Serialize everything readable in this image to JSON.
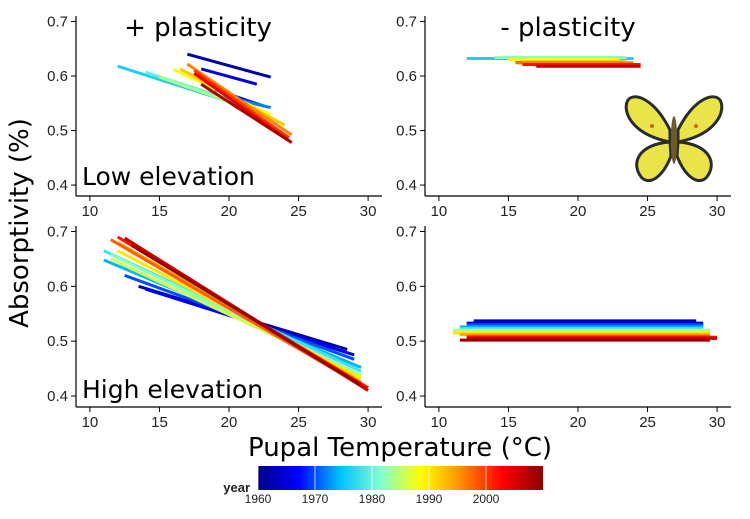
{
  "figure": {
    "col_titles": [
      "+ plasticity",
      "- plasticity"
    ],
    "row_labels": [
      "Low elevation",
      "High elevation"
    ],
    "xlabel": "Pupal Temperature (°C)",
    "ylabel": "Absorptivity (%)",
    "colorbar": {
      "title": "year",
      "ticks": [
        "1960",
        "1970",
        "1980",
        "1990",
        "2000"
      ],
      "range": [
        1960,
        2010
      ],
      "colors": [
        "#00008b",
        "#0000ff",
        "#00bfff",
        "#7fffd4",
        "#ffff00",
        "#ff8c00",
        "#ff0000",
        "#8b0000"
      ]
    },
    "butterfly": {
      "body": "#6b5a2e",
      "wing": "#e8e44a",
      "edge": "#2b2b2b"
    }
  },
  "chart_data": [
    {
      "type": "line",
      "panel": "+ plasticity / Low elevation",
      "xlim": [
        9,
        31
      ],
      "ylim": [
        0.38,
        0.71
      ],
      "xticks": [
        "10",
        "15",
        "20",
        "25",
        "30"
      ],
      "yticks": [
        "0.4",
        "0.5",
        "0.6",
        "0.7"
      ],
      "grid": false,
      "lines": [
        {
          "year": 1962,
          "x": [
            17,
            23
          ],
          "y": [
            0.64,
            0.598
          ]
        },
        {
          "year": 1965,
          "x": [
            18,
            22
          ],
          "y": [
            0.613,
            0.585
          ]
        },
        {
          "year": 1968,
          "x": [
            19,
            22.5
          ],
          "y": [
            0.575,
            0.545
          ]
        },
        {
          "year": 1972,
          "x": [
            20,
            23
          ],
          "y": [
            0.56,
            0.542
          ]
        },
        {
          "year": 1976,
          "x": [
            12,
            20
          ],
          "y": [
            0.618,
            0.553
          ]
        },
        {
          "year": 1980,
          "x": [
            14,
            21
          ],
          "y": [
            0.607,
            0.549
          ]
        },
        {
          "year": 1984,
          "x": [
            15,
            22
          ],
          "y": [
            0.598,
            0.535
          ]
        },
        {
          "year": 1988,
          "x": [
            16,
            23
          ],
          "y": [
            0.612,
            0.529
          ]
        },
        {
          "year": 1992,
          "x": [
            16.5,
            24
          ],
          "y": [
            0.613,
            0.51
          ]
        },
        {
          "year": 1996,
          "x": [
            17,
            24.5
          ],
          "y": [
            0.622,
            0.492
          ]
        },
        {
          "year": 2000,
          "x": [
            17.5,
            24.3
          ],
          "y": [
            0.61,
            0.487
          ]
        },
        {
          "year": 2004,
          "x": [
            17.5,
            24.5
          ],
          "y": [
            0.605,
            0.478
          ]
        },
        {
          "year": 2008,
          "x": [
            18,
            24.5
          ],
          "y": [
            0.585,
            0.478
          ]
        }
      ]
    },
    {
      "type": "line",
      "panel": "- plasticity / Low elevation",
      "xlim": [
        9,
        31
      ],
      "ylim": [
        0.38,
        0.71
      ],
      "xticks": [
        "10",
        "15",
        "20",
        "25",
        "30"
      ],
      "yticks": [
        "0.4",
        "0.5",
        "0.6",
        "0.7"
      ],
      "grid": false,
      "lines": [
        {
          "year": 1962,
          "x": [
            16,
            22
          ],
          "y": [
            0.63,
            0.63
          ]
        },
        {
          "year": 1968,
          "x": [
            15.5,
            23
          ],
          "y": [
            0.628,
            0.628
          ]
        },
        {
          "year": 1976,
          "x": [
            12,
            24
          ],
          "y": [
            0.632,
            0.632
          ]
        },
        {
          "year": 1982,
          "x": [
            14,
            23.5
          ],
          "y": [
            0.634,
            0.634
          ]
        },
        {
          "year": 1988,
          "x": [
            15,
            23
          ],
          "y": [
            0.63,
            0.63
          ]
        },
        {
          "year": 1993,
          "x": [
            16,
            23.5
          ],
          "y": [
            0.626,
            0.626
          ]
        },
        {
          "year": 1997,
          "x": [
            15.5,
            24
          ],
          "y": [
            0.624,
            0.624
          ]
        },
        {
          "year": 2002,
          "x": [
            16,
            24.5
          ],
          "y": [
            0.621,
            0.621
          ]
        },
        {
          "year": 2007,
          "x": [
            17,
            24.5
          ],
          "y": [
            0.618,
            0.618
          ]
        }
      ]
    },
    {
      "type": "line",
      "panel": "+ plasticity / High elevation",
      "xlim": [
        9,
        31
      ],
      "ylim": [
        0.38,
        0.71
      ],
      "xticks": [
        "10",
        "15",
        "20",
        "25",
        "30"
      ],
      "yticks": [
        "0.4",
        "0.5",
        "0.6",
        "0.7"
      ],
      "grid": false,
      "lines": [
        {
          "year": 1962,
          "x": [
            13.5,
            28.5
          ],
          "y": [
            0.6,
            0.485
          ]
        },
        {
          "year": 1966,
          "x": [
            14,
            29
          ],
          "y": [
            0.595,
            0.475
          ]
        },
        {
          "year": 1970,
          "x": [
            12.5,
            29
          ],
          "y": [
            0.62,
            0.467
          ]
        },
        {
          "year": 1974,
          "x": [
            11,
            29.5
          ],
          "y": [
            0.648,
            0.452
          ]
        },
        {
          "year": 1978,
          "x": [
            11,
            29.5
          ],
          "y": [
            0.665,
            0.445
          ]
        },
        {
          "year": 1982,
          "x": [
            11.5,
            29.5
          ],
          "y": [
            0.658,
            0.438
          ]
        },
        {
          "year": 1986,
          "x": [
            11.5,
            29.5
          ],
          "y": [
            0.65,
            0.435
          ]
        },
        {
          "year": 1990,
          "x": [
            12,
            29.5
          ],
          "y": [
            0.665,
            0.432
          ]
        },
        {
          "year": 1994,
          "x": [
            12,
            29.5
          ],
          "y": [
            0.68,
            0.425
          ]
        },
        {
          "year": 1998,
          "x": [
            11.5,
            29.5
          ],
          "y": [
            0.685,
            0.42
          ]
        },
        {
          "year": 2002,
          "x": [
            12,
            30
          ],
          "y": [
            0.69,
            0.415
          ]
        },
        {
          "year": 2006,
          "x": [
            12.5,
            30
          ],
          "y": [
            0.688,
            0.41
          ]
        },
        {
          "year": 2009,
          "x": [
            13,
            29.5
          ],
          "y": [
            0.675,
            0.42
          ]
        }
      ]
    },
    {
      "type": "line",
      "panel": "- plasticity / High elevation",
      "xlim": [
        9,
        31
      ],
      "ylim": [
        0.38,
        0.71
      ],
      "xticks": [
        "10",
        "15",
        "20",
        "25",
        "30"
      ],
      "yticks": [
        "0.4",
        "0.5",
        "0.6",
        "0.7"
      ],
      "grid": false,
      "lines": [
        {
          "year": 1962,
          "x": [
            12.5,
            28.5
          ],
          "y": [
            0.537,
            0.537
          ]
        },
        {
          "year": 1966,
          "x": [
            12,
            29
          ],
          "y": [
            0.533,
            0.533
          ]
        },
        {
          "year": 1970,
          "x": [
            12,
            29
          ],
          "y": [
            0.53,
            0.53
          ]
        },
        {
          "year": 1974,
          "x": [
            11.5,
            29
          ],
          "y": [
            0.526,
            0.526
          ]
        },
        {
          "year": 1978,
          "x": [
            11.5,
            29
          ],
          "y": [
            0.523,
            0.523
          ]
        },
        {
          "year": 1982,
          "x": [
            11,
            29.5
          ],
          "y": [
            0.52,
            0.52
          ]
        },
        {
          "year": 1986,
          "x": [
            11,
            29.5
          ],
          "y": [
            0.517,
            0.517
          ]
        },
        {
          "year": 1990,
          "x": [
            11,
            29.5
          ],
          "y": [
            0.515,
            0.515
          ]
        },
        {
          "year": 1994,
          "x": [
            11.5,
            29.5
          ],
          "y": [
            0.512,
            0.512
          ]
        },
        {
          "year": 1998,
          "x": [
            12,
            29.5
          ],
          "y": [
            0.509,
            0.509
          ]
        },
        {
          "year": 2002,
          "x": [
            12,
            30
          ],
          "y": [
            0.507,
            0.507
          ]
        },
        {
          "year": 2006,
          "x": [
            12,
            30
          ],
          "y": [
            0.505,
            0.505
          ]
        },
        {
          "year": 2009,
          "x": [
            11.5,
            29.5
          ],
          "y": [
            0.502,
            0.502
          ]
        }
      ]
    }
  ]
}
